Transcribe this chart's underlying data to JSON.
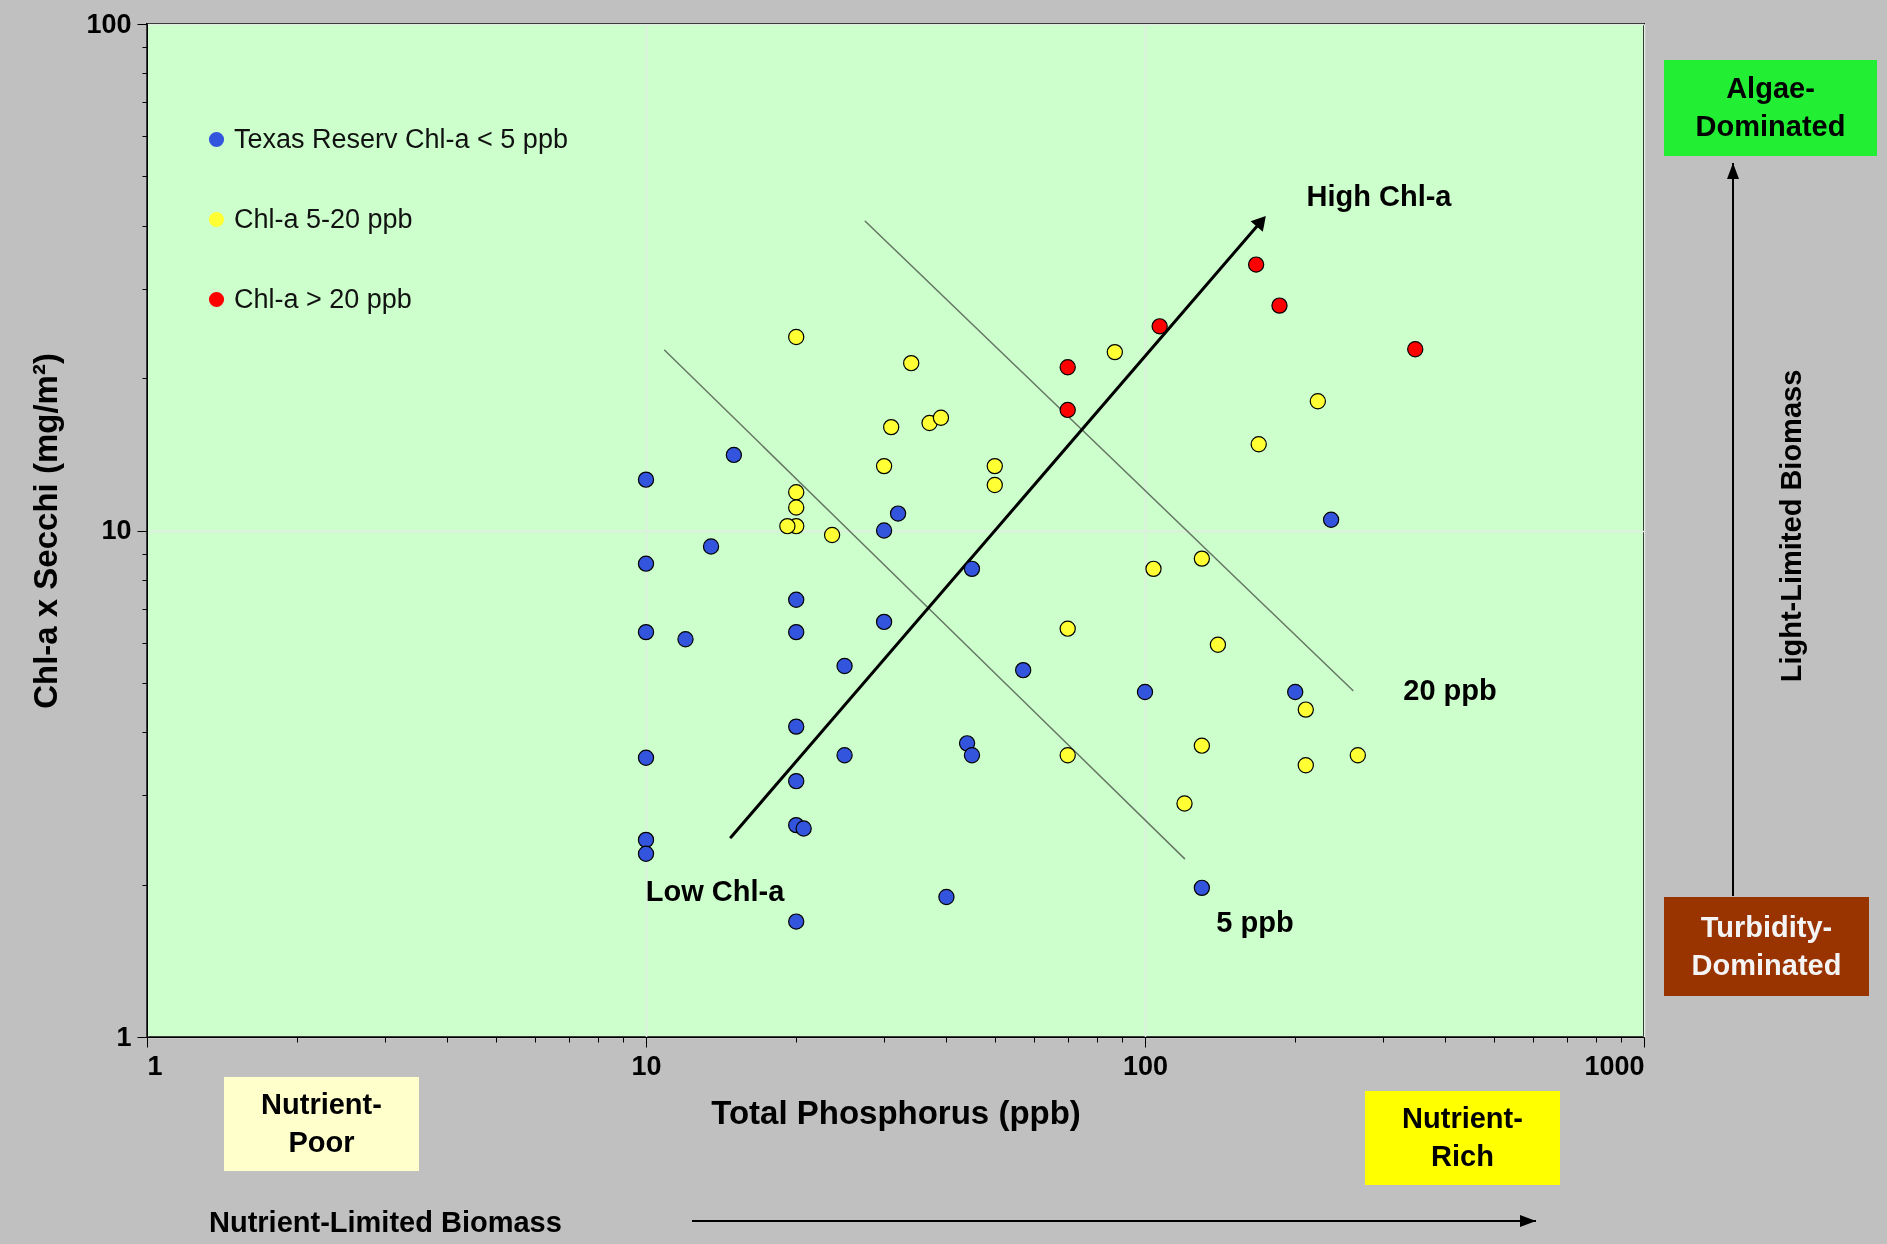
{
  "chart_data": {
    "type": "scatter",
    "xlabel": "Total Phosphorus (ppb)",
    "ylabel": "Chl-a x Secchi (mg/m²)",
    "log": "xy",
    "grid": true,
    "legend": "top left",
    "xlim": [
      1,
      1000
    ],
    "ylim": [
      1,
      100
    ],
    "xticks": [
      1,
      {
        "value": 2,
        "label": null
      },
      {
        "value": 3,
        "label": null
      },
      {
        "value": 4,
        "label": null
      },
      {
        "value": 5,
        "label": null
      },
      {
        "value": 6,
        "label": null
      },
      {
        "value": 7,
        "label": null
      },
      {
        "value": 8,
        "label": null
      },
      {
        "value": 9,
        "label": null
      },
      10,
      {
        "value": 20,
        "label": null
      },
      {
        "value": 30,
        "label": null
      },
      {
        "value": 40,
        "label": null
      },
      {
        "value": 50,
        "label": null
      },
      {
        "value": 60,
        "label": null
      },
      {
        "value": 70,
        "label": null
      },
      {
        "value": 80,
        "label": null
      },
      {
        "value": 90,
        "label": null
      },
      100,
      {
        "value": 200,
        "label": null
      },
      {
        "value": 300,
        "label": null
      },
      {
        "value": 400,
        "label": null
      },
      {
        "value": 500,
        "label": null
      },
      {
        "value": 600,
        "label": null
      },
      {
        "value": 700,
        "label": null
      },
      {
        "value": 800,
        "label": null
      },
      {
        "value": 900,
        "label": null
      },
      1000
    ],
    "yticks": [
      1,
      {
        "value": 2,
        "label": null
      },
      {
        "value": 3,
        "label": null
      },
      {
        "value": 4,
        "label": null
      },
      {
        "value": 5,
        "label": null
      },
      {
        "value": 6,
        "label": null
      },
      {
        "value": 7,
        "label": null
      },
      {
        "value": 8,
        "label": null
      },
      {
        "value": 9,
        "label": null
      },
      10,
      {
        "value": 20,
        "label": null
      },
      {
        "value": 30,
        "label": null
      },
      {
        "value": 40,
        "label": null
      },
      {
        "value": 50,
        "label": null
      },
      {
        "value": 60,
        "label": null
      },
      {
        "value": 70,
        "label": null
      },
      {
        "value": 80,
        "label": null
      },
      {
        "value": 90,
        "label": null
      },
      100
    ],
    "series": [
      {
        "name": "Texas Reserv Chl-a < 5 ppb",
        "color": "#3355dd",
        "marker": "circle",
        "x": [
          10,
          15,
          10,
          13.5,
          10,
          12,
          10,
          10,
          10,
          20,
          20,
          20,
          20,
          20,
          20.7,
          20,
          25,
          25,
          30,
          30,
          32,
          45,
          44,
          45,
          40,
          57,
          100,
          130,
          200,
          236
        ],
        "values": [
          12.6,
          14.1,
          8.6,
          9.3,
          6.3,
          6.1,
          3.56,
          2.45,
          2.3,
          7.3,
          6.3,
          4.1,
          3.2,
          2.62,
          2.58,
          1.69,
          5.4,
          3.6,
          6.6,
          10,
          10.8,
          8.4,
          3.8,
          3.6,
          1.89,
          5.3,
          4.8,
          1.97,
          4.8,
          10.5
        ]
      },
      {
        "name": "Chl-a 5-20 ppb",
        "color": "#ffff33",
        "marker": "circle",
        "x": [
          20,
          34,
          31,
          37,
          39,
          30,
          20,
          20,
          20,
          19.2,
          23.6,
          50,
          50,
          87,
          169,
          222,
          104,
          130,
          70,
          140,
          70,
          130,
          120,
          210,
          210,
          267
        ],
        "values": [
          24.1,
          21.4,
          16,
          16.3,
          16.7,
          13.4,
          11.9,
          11.1,
          10.2,
          10.2,
          9.8,
          13.4,
          12.3,
          22.5,
          14.8,
          18,
          8.4,
          8.8,
          6.4,
          5.95,
          3.6,
          3.76,
          2.89,
          4.43,
          3.44,
          3.6
        ]
      },
      {
        "name": "Chl-a > 20 ppb",
        "color": "#ff0000",
        "marker": "circle",
        "x": [
          167,
          186,
          107,
          70,
          70,
          348
        ],
        "values": [
          33.5,
          27.8,
          25.3,
          21,
          17.3,
          22.8
        ]
      },
      {
        "type": "line",
        "color": "#667766",
        "x": [
          10.9,
          120
        ],
        "values": [
          22.7,
          2.25
        ]
      },
      {
        "type": "line",
        "color": "#667766",
        "x": [
          27.5,
          261
        ],
        "values": [
          40.8,
          4.83
        ]
      },
      {
        "type": "line",
        "color": "#000000",
        "x": [
          14.8,
          171
        ],
        "values": [
          2.48,
          40.8
        ]
      }
    ],
    "annotations": [
      "High Chl-a",
      "Low Chl-a",
      "20 ppb",
      "5 ppb",
      "Algae-Dominated",
      "Turbidity-Dominated",
      "Nutrient-Poor",
      "Nutrient-Rich",
      "Light-Limited Biomass",
      "Nutrient-Limited Biomass"
    ]
  }
}
